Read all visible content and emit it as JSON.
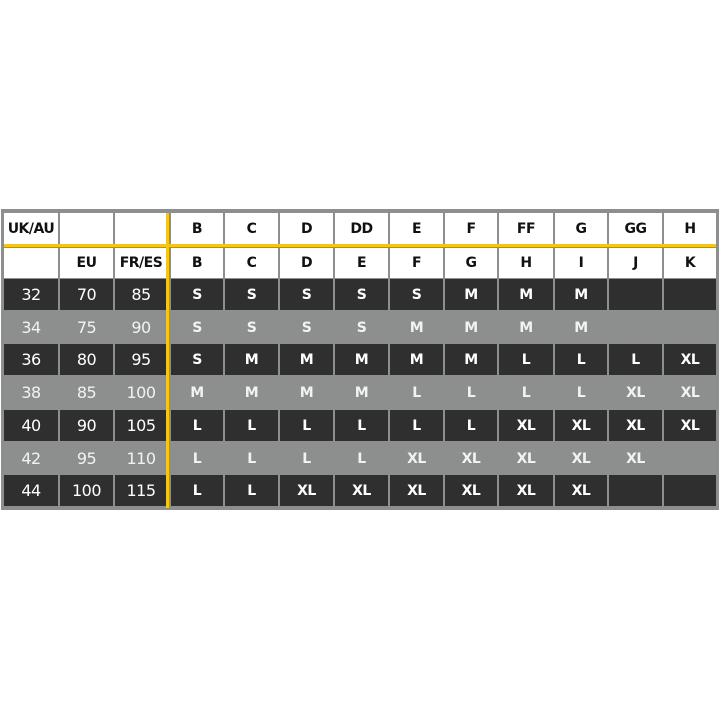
{
  "colors": {
    "accent_line": "#f5c518",
    "dark_row": "#2f2f2f",
    "light_row": "#8d8f8f",
    "header": "#ffffff"
  },
  "header_rows": [
    [
      "UK/AU",
      "",
      "",
      "B",
      "C",
      "D",
      "DD",
      "E",
      "F",
      "FF",
      "G",
      "GG",
      "H"
    ],
    [
      "",
      "EU",
      "FR/ES",
      "B",
      "C",
      "D",
      "E",
      "F",
      "G",
      "H",
      "I",
      "J",
      "K"
    ]
  ],
  "rows": [
    [
      "32",
      "70",
      "85",
      "S",
      "S",
      "S",
      "S",
      "S",
      "M",
      "M",
      "M",
      "",
      ""
    ],
    [
      "34",
      "75",
      "90",
      "S",
      "S",
      "S",
      "S",
      "M",
      "M",
      "M",
      "M",
      "",
      ""
    ],
    [
      "36",
      "80",
      "95",
      "S",
      "M",
      "M",
      "M",
      "M",
      "M",
      "L",
      "L",
      "L",
      "XL"
    ],
    [
      "38",
      "85",
      "100",
      "M",
      "M",
      "M",
      "M",
      "L",
      "L",
      "L",
      "L",
      "XL",
      "XL"
    ],
    [
      "40",
      "90",
      "105",
      "L",
      "L",
      "L",
      "L",
      "L",
      "L",
      "XL",
      "XL",
      "XL",
      "XL"
    ],
    [
      "42",
      "95",
      "110",
      "L",
      "L",
      "L",
      "L",
      "XL",
      "XL",
      "XL",
      "XL",
      "XL",
      ""
    ],
    [
      "44",
      "100",
      "115",
      "L",
      "L",
      "XL",
      "XL",
      "XL",
      "XL",
      "XL",
      "XL",
      "",
      ""
    ]
  ]
}
